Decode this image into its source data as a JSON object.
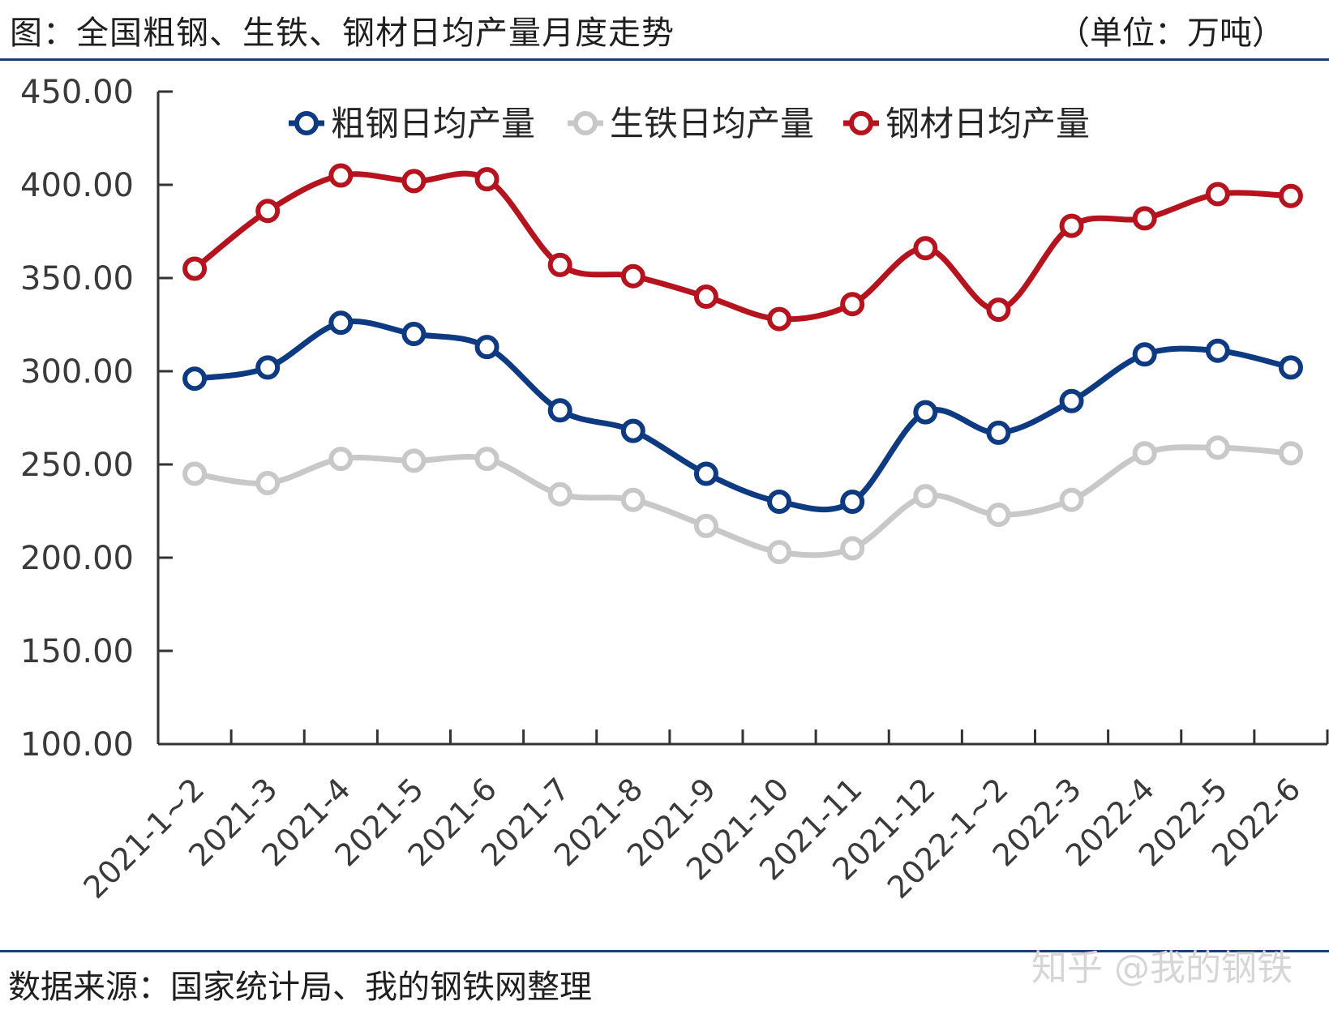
{
  "header": {
    "title": "图：全国粗钢、生铁、钢材日均产量月度走势",
    "unit": "（单位：万吨）"
  },
  "footer": {
    "source": "数据来源：国家统计局、我的钢铁网整理",
    "watermark": "知乎 @我的钢铁"
  },
  "chart_data": {
    "type": "line",
    "categories": [
      "2021-1~2",
      "2021-3",
      "2021-4",
      "2021-5",
      "2021-6",
      "2021-7",
      "2021-8",
      "2021-9",
      "2021-10",
      "2021-11",
      "2021-12",
      "2022-1~2",
      "2022-3",
      "2022-4",
      "2022-5",
      "2022-6"
    ],
    "series": [
      {
        "name": "粗钢日均产量",
        "color": "#0d3a80",
        "values": [
          296,
          302,
          326,
          320,
          313,
          279,
          268,
          245,
          230,
          230,
          278,
          267,
          284,
          309,
          311,
          302
        ]
      },
      {
        "name": "生铁日均产量",
        "color": "#c8c8c8",
        "values": [
          245,
          240,
          253,
          252,
          253,
          234,
          231,
          217,
          203,
          205,
          233,
          223,
          231,
          256,
          259,
          256
        ]
      },
      {
        "name": "钢材日均产量",
        "color": "#b5141f",
        "values": [
          355,
          386,
          405,
          402,
          403,
          357,
          351,
          340,
          328,
          336,
          366,
          333,
          378,
          382,
          395,
          394
        ]
      }
    ],
    "yticks": [
      "450.00",
      "400.00",
      "350.00",
      "300.00",
      "250.00",
      "200.00",
      "150.00",
      "100.00"
    ],
    "ylim": [
      100,
      450
    ],
    "legend_position": "top",
    "grid": false
  }
}
